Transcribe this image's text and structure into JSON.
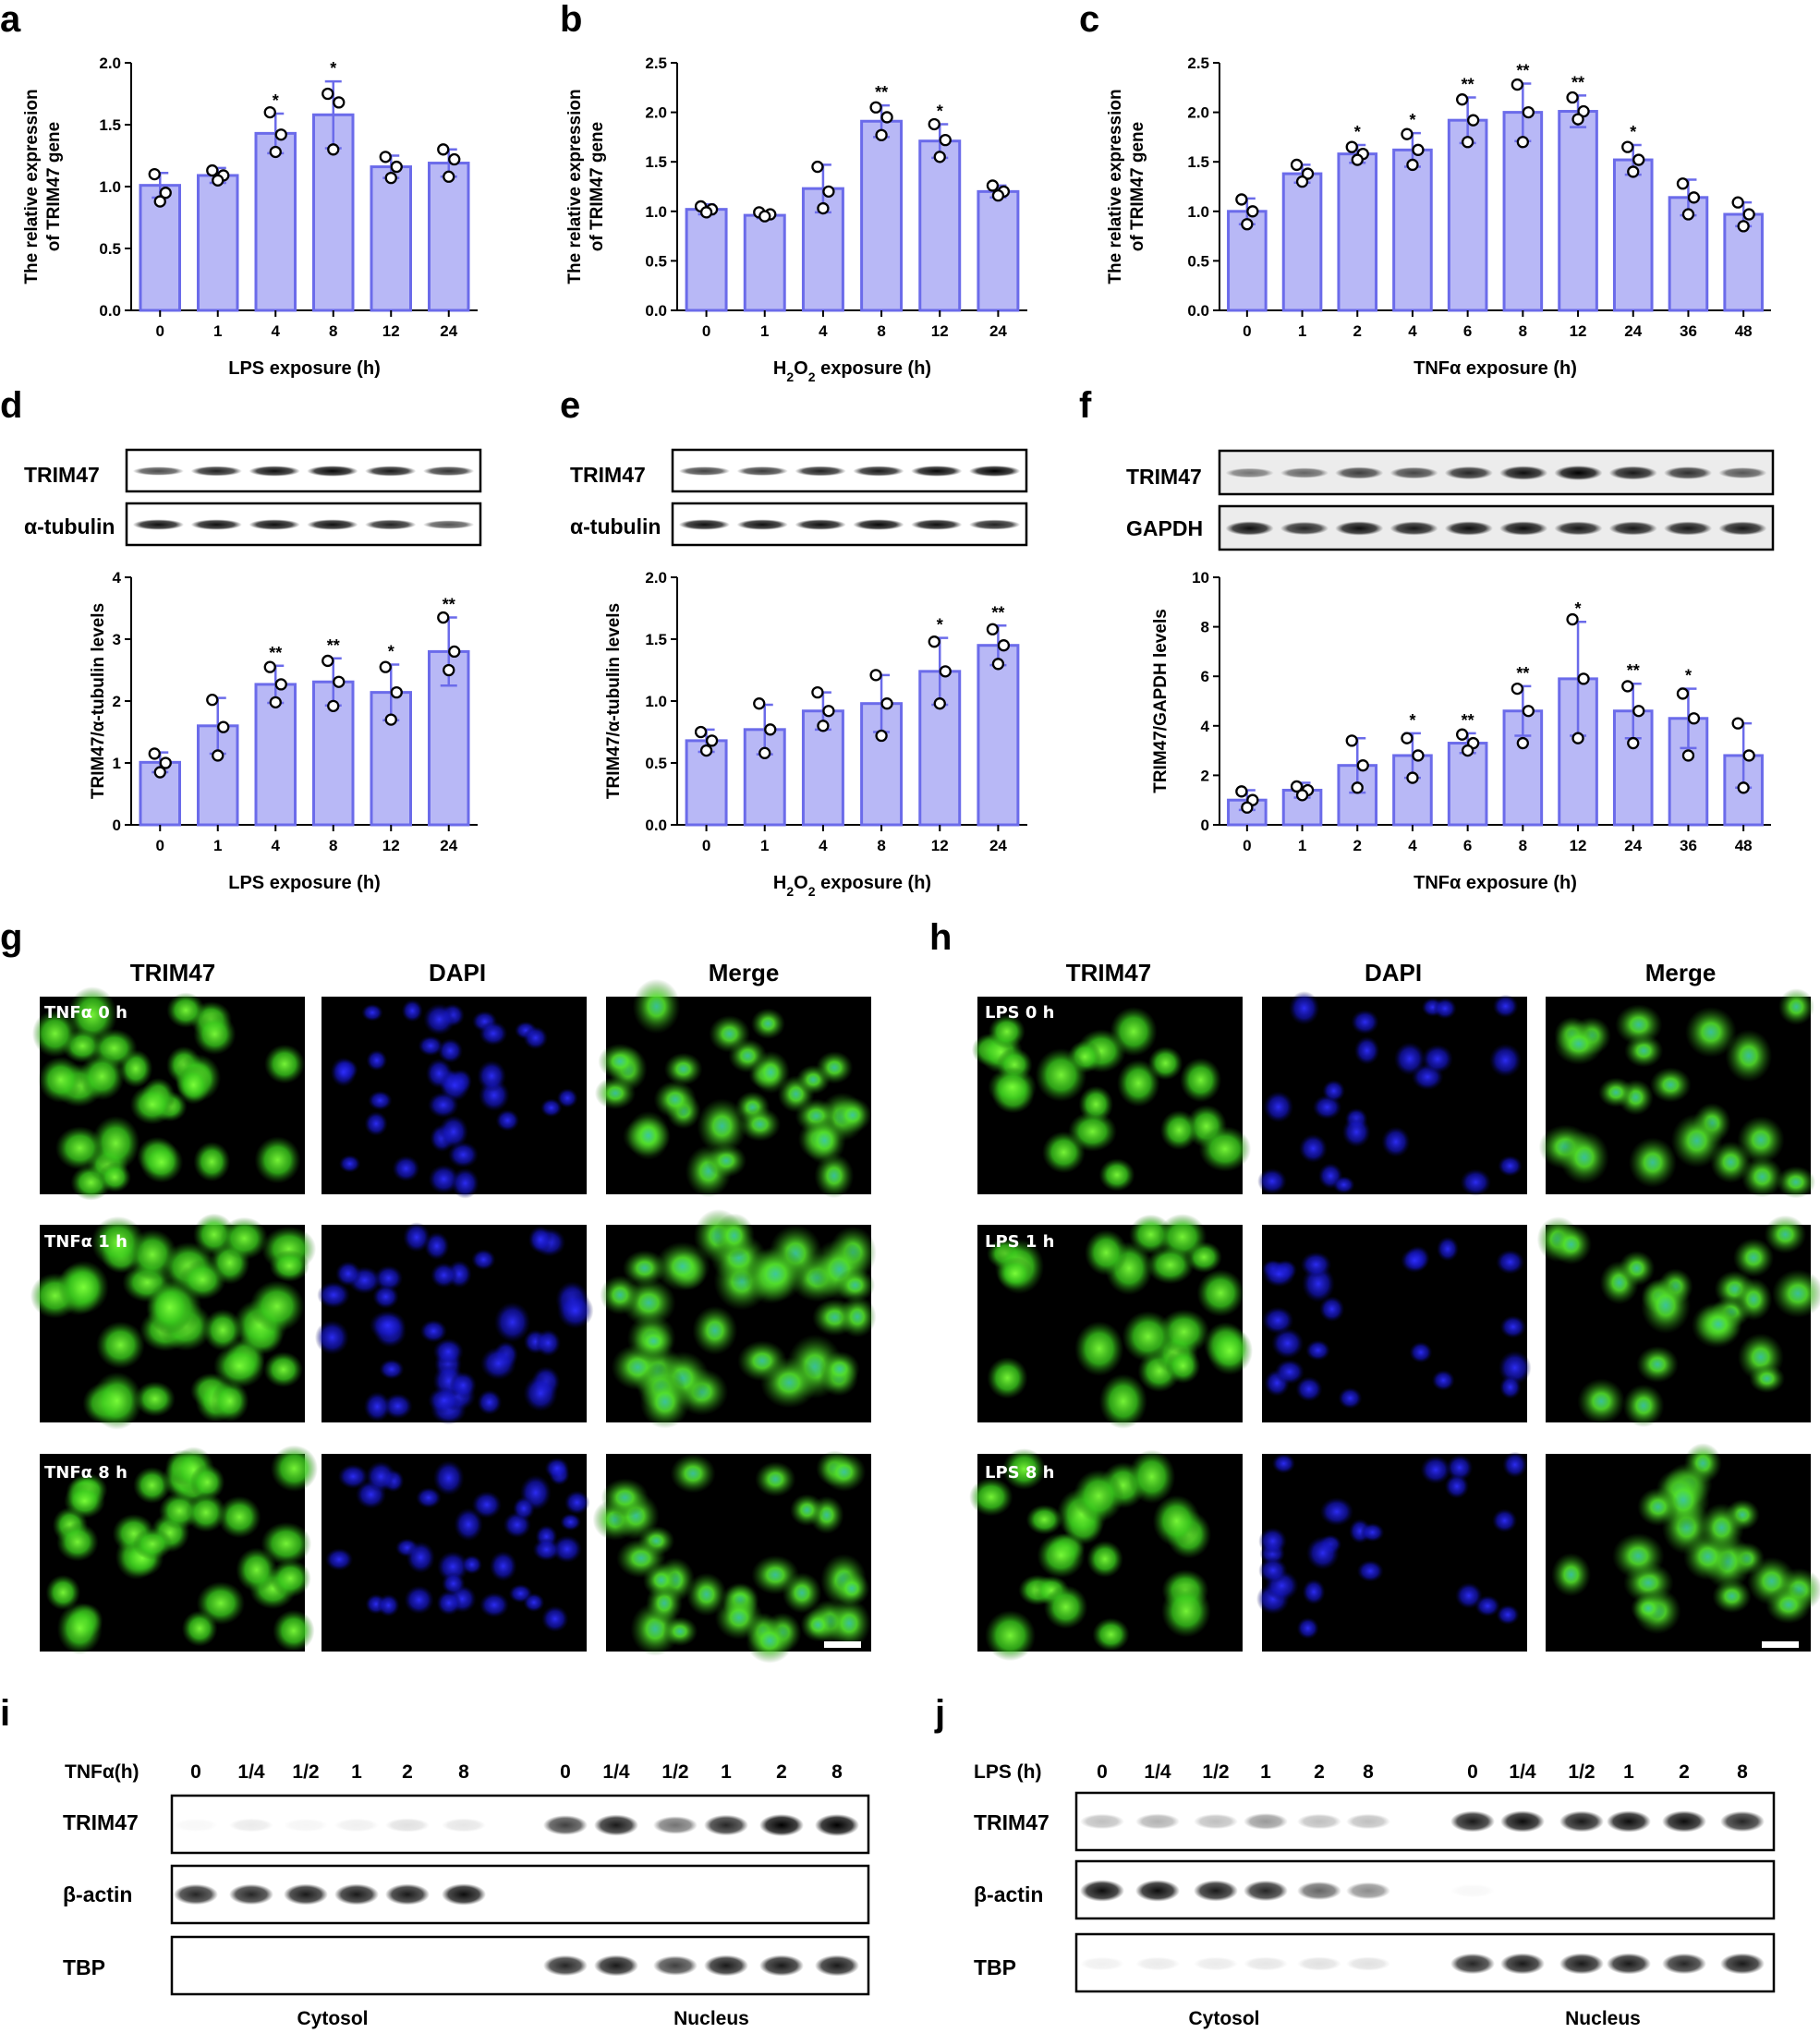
{
  "panel_letters": [
    "a",
    "b",
    "c",
    "d",
    "e",
    "f",
    "g",
    "h",
    "i",
    "j"
  ],
  "chart_data": [
    {
      "id": "a",
      "type": "bar",
      "ylabel": [
        "The relative expression",
        "of TRIM47 gene"
      ],
      "xlabel": "LPS exposure (h)",
      "categories": [
        "0",
        "1",
        "4",
        "8",
        "12",
        "24"
      ],
      "values": [
        1.01,
        1.09,
        1.43,
        1.58,
        1.16,
        1.19
      ],
      "errors": [
        0.1,
        0.06,
        0.16,
        0.27,
        0.09,
        0.11
      ],
      "points": [
        [
          1.1,
          0.95,
          0.88
        ],
        [
          1.13,
          1.09,
          1.05
        ],
        [
          1.6,
          1.42,
          1.28
        ],
        [
          1.75,
          1.68,
          1.3
        ],
        [
          1.24,
          1.16,
          1.07
        ],
        [
          1.3,
          1.22,
          1.08
        ]
      ],
      "sig": [
        "",
        "",
        "*",
        "*",
        "",
        ""
      ],
      "ylim": [
        0,
        2.0
      ],
      "yticks": [
        "0.0",
        "0.5",
        "1.0",
        "1.5",
        "2.0"
      ]
    },
    {
      "id": "b",
      "type": "bar",
      "ylabel": [
        "The relative expression",
        "of TRIM47 gene"
      ],
      "xlabel": "H2O2 exposure (h)",
      "categories": [
        "0",
        "1",
        "4",
        "8",
        "12",
        "24"
      ],
      "values": [
        1.02,
        0.96,
        1.23,
        1.91,
        1.71,
        1.2
      ],
      "errors": [
        0.05,
        0.03,
        0.24,
        0.16,
        0.17,
        0.06
      ],
      "points": [
        [
          1.05,
          1.02,
          0.99
        ],
        [
          0.99,
          0.97,
          0.95
        ],
        [
          1.45,
          1.2,
          1.03
        ],
        [
          2.05,
          1.95,
          1.77
        ],
        [
          1.88,
          1.72,
          1.55
        ],
        [
          1.26,
          1.2,
          1.16
        ]
      ],
      "sig": [
        "",
        "",
        "",
        "**",
        "*",
        ""
      ],
      "ylim": [
        0,
        2.5
      ],
      "yticks": [
        "0.0",
        "0.5",
        "1.0",
        "1.5",
        "2.0",
        "2.5"
      ]
    },
    {
      "id": "c",
      "type": "bar",
      "ylabel": [
        "The relative expression",
        "of TRIM47 gene"
      ],
      "xlabel": "TNFα exposure (h)",
      "categories": [
        "0",
        "1",
        "2",
        "4",
        "6",
        "8",
        "12",
        "24",
        "36",
        "48"
      ],
      "values": [
        1.0,
        1.38,
        1.58,
        1.62,
        1.92,
        2.0,
        2.01,
        1.52,
        1.14,
        0.97
      ],
      "errors": [
        0.13,
        0.09,
        0.09,
        0.17,
        0.23,
        0.29,
        0.16,
        0.15,
        0.18,
        0.12
      ],
      "points": [
        [
          1.12,
          1.0,
          0.87
        ],
        [
          1.47,
          1.38,
          1.3
        ],
        [
          1.65,
          1.58,
          1.52
        ],
        [
          1.78,
          1.62,
          1.47
        ],
        [
          2.13,
          1.92,
          1.7
        ],
        [
          2.28,
          2.0,
          1.7
        ],
        [
          2.15,
          2.01,
          1.93
        ],
        [
          1.65,
          1.52,
          1.4
        ],
        [
          1.28,
          1.14,
          0.97
        ],
        [
          1.09,
          0.97,
          0.85
        ]
      ],
      "sig": [
        "",
        "",
        "*",
        "*",
        "**",
        "**",
        "**",
        "*",
        "",
        ""
      ],
      "ylim": [
        0,
        2.5
      ],
      "yticks": [
        "0.0",
        "0.5",
        "1.0",
        "1.5",
        "2.0",
        "2.5"
      ]
    },
    {
      "id": "d",
      "type": "bar",
      "ylabel": [
        "TRIM47/α-tubulin levels"
      ],
      "xlabel": "LPS exposure (h)",
      "categories": [
        "0",
        "1",
        "4",
        "8",
        "12",
        "24"
      ],
      "values": [
        1.01,
        1.6,
        2.27,
        2.31,
        2.14,
        2.8
      ],
      "errors": [
        0.16,
        0.45,
        0.3,
        0.38,
        0.45,
        0.55
      ],
      "points": [
        [
          1.15,
          1.0,
          0.85
        ],
        [
          2.02,
          1.58,
          1.12
        ],
        [
          2.55,
          2.27,
          1.98
        ],
        [
          2.65,
          2.31,
          1.92
        ],
        [
          2.55,
          2.14,
          1.7
        ],
        [
          3.35,
          2.8,
          2.5
        ]
      ],
      "sig": [
        "",
        "",
        "**",
        "**",
        "*",
        "**"
      ],
      "ylim": [
        0,
        4
      ],
      "yticks": [
        "0",
        "1",
        "2",
        "3",
        "4"
      ]
    },
    {
      "id": "e",
      "type": "bar",
      "ylabel": [
        "TRIM47/α-tubulin levels"
      ],
      "xlabel": "H2O2 exposure (h)",
      "categories": [
        "0",
        "1",
        "4",
        "8",
        "12",
        "24"
      ],
      "values": [
        0.68,
        0.77,
        0.92,
        0.98,
        1.24,
        1.45
      ],
      "errors": [
        0.09,
        0.2,
        0.15,
        0.23,
        0.27,
        0.16
      ],
      "points": [
        [
          0.75,
          0.68,
          0.6
        ],
        [
          0.98,
          0.77,
          0.58
        ],
        [
          1.07,
          0.92,
          0.8
        ],
        [
          1.21,
          0.98,
          0.72
        ],
        [
          1.48,
          1.24,
          0.98
        ],
        [
          1.58,
          1.45,
          1.3
        ]
      ],
      "sig": [
        "",
        "",
        "",
        "",
        "*",
        "**"
      ],
      "ylim": [
        0,
        2.0
      ],
      "yticks": [
        "0.0",
        "0.5",
        "1.0",
        "1.5",
        "2.0"
      ]
    },
    {
      "id": "f",
      "type": "bar",
      "ylabel": [
        "TRIM47/GAPDH levels"
      ],
      "xlabel": "TNFα exposure (h)",
      "categories": [
        "0",
        "1",
        "2",
        "4",
        "6",
        "8",
        "12",
        "24",
        "36",
        "48"
      ],
      "values": [
        1.0,
        1.4,
        2.4,
        2.8,
        3.3,
        4.6,
        5.9,
        4.6,
        4.3,
        2.8
      ],
      "errors": [
        0.4,
        0.3,
        1.1,
        0.9,
        0.4,
        1.0,
        2.3,
        1.1,
        1.2,
        1.3
      ],
      "points": [
        [
          1.35,
          1.0,
          0.7
        ],
        [
          1.55,
          1.4,
          1.2
        ],
        [
          3.4,
          2.4,
          1.5
        ],
        [
          3.5,
          2.8,
          1.9
        ],
        [
          3.65,
          3.3,
          3.0
        ],
        [
          5.5,
          4.6,
          3.3
        ],
        [
          8.3,
          5.9,
          3.5
        ],
        [
          5.6,
          4.6,
          3.3
        ],
        [
          5.3,
          4.3,
          2.8
        ],
        [
          4.1,
          2.8,
          1.5
        ]
      ],
      "sig": [
        "",
        "",
        "",
        "*",
        "**",
        "**",
        "*",
        "**",
        "*",
        ""
      ],
      "ylim": [
        0,
        10
      ],
      "yticks": [
        "0",
        "2",
        "4",
        "6",
        "8",
        "10"
      ]
    }
  ],
  "blots": {
    "d": {
      "rows": [
        "TRIM47",
        "α-tubulin"
      ]
    },
    "e": {
      "rows": [
        "TRIM47",
        "α-tubulin"
      ]
    },
    "f": {
      "rows": [
        "TRIM47",
        "GAPDH"
      ]
    }
  },
  "microscopy": {
    "g": {
      "columns": [
        "TRIM47",
        "DAPI",
        "Merge"
      ],
      "rows": [
        "TNFα 0 h",
        "TNFα 1 h",
        "TNFα 8 h"
      ]
    },
    "h": {
      "columns": [
        "TRIM47",
        "DAPI",
        "Merge"
      ],
      "rows": [
        "LPS 0 h",
        "LPS 1 h",
        "LPS 8 h"
      ]
    }
  },
  "fractionation": {
    "i": {
      "time_label": "TNFα(h)",
      "lanes": [
        "0",
        "1/4",
        "1/2",
        "1",
        "2",
        "8",
        "0",
        "1/4",
        "1/2",
        "1",
        "2",
        "8"
      ],
      "rows": [
        "TRIM47",
        "β-actin",
        "TBP"
      ],
      "groups": [
        "Cytosol",
        "Nucleus"
      ]
    },
    "j": {
      "time_label": "LPS  (h)",
      "lanes": [
        "0",
        "1/4",
        "1/2",
        "1",
        "2",
        "8",
        "0",
        "1/4",
        "1/2",
        "1",
        "2",
        "8"
      ],
      "rows": [
        "TRIM47",
        "β-actin",
        "TBP"
      ],
      "groups": [
        "Cytosol",
        "Nucleus"
      ]
    }
  },
  "colors": {
    "bar_fill": "#b8b8f6",
    "bar_stroke": "#6b6bea",
    "error": "#6b6bea",
    "point": "#000000",
    "axis": "#000000",
    "green": "#38c81c",
    "blue": "#1a1ad6"
  }
}
